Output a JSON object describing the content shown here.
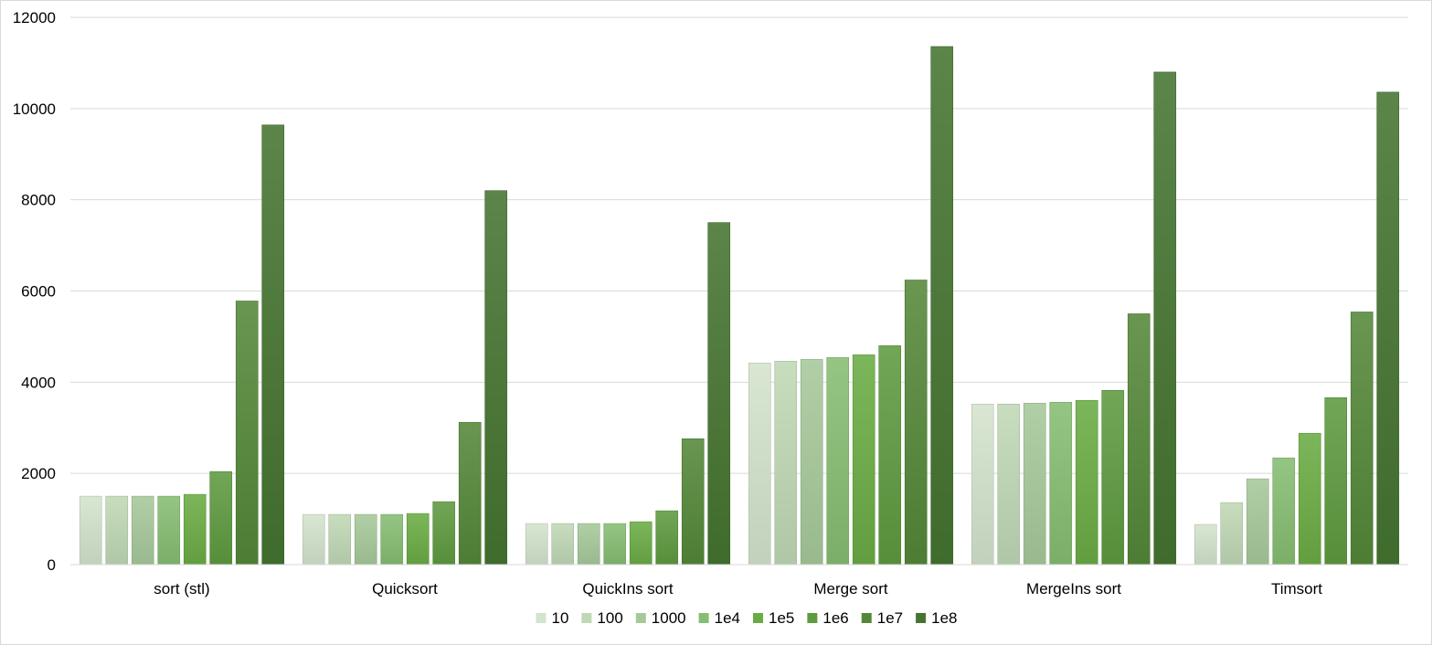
{
  "chart_data": {
    "type": "bar",
    "title": "",
    "xlabel": "",
    "ylabel": "",
    "ylim": [
      0,
      12000
    ],
    "yticks": [
      "0",
      "2000",
      "4000",
      "6000",
      "8000",
      "10000",
      "12000"
    ],
    "grid": true,
    "legend_position": "bottom",
    "categories": [
      "sort (stl)",
      "Quicksort",
      "QuickIns sort",
      "Merge sort",
      "MergeIns sort",
      "Timsort"
    ],
    "series": [
      {
        "name": "10",
        "color": "#d3e3cc",
        "values": [
          1500,
          1100,
          900,
          4420,
          3520,
          880
        ]
      },
      {
        "name": "100",
        "color": "#bfd8b5",
        "values": [
          1500,
          1100,
          900,
          4460,
          3520,
          1360
        ]
      },
      {
        "name": "1000",
        "color": "#a6c99a",
        "values": [
          1500,
          1100,
          900,
          4500,
          3540,
          1880
        ]
      },
      {
        "name": "1e4",
        "color": "#86bd72",
        "values": [
          1500,
          1100,
          900,
          4540,
          3560,
          2340
        ]
      },
      {
        "name": "1e5",
        "color": "#6aac44",
        "values": [
          1540,
          1120,
          940,
          4600,
          3600,
          2880
        ]
      },
      {
        "name": "1e6",
        "color": "#5e9a3f",
        "values": [
          2040,
          1380,
          1180,
          4800,
          3820,
          3660
        ]
      },
      {
        "name": "1e7",
        "color": "#548839",
        "values": [
          5780,
          3120,
          2760,
          6240,
          5500,
          5540
        ]
      },
      {
        "name": "1e8",
        "color": "#457430",
        "values": [
          9640,
          8200,
          7500,
          11360,
          10800,
          10360
        ]
      }
    ]
  }
}
